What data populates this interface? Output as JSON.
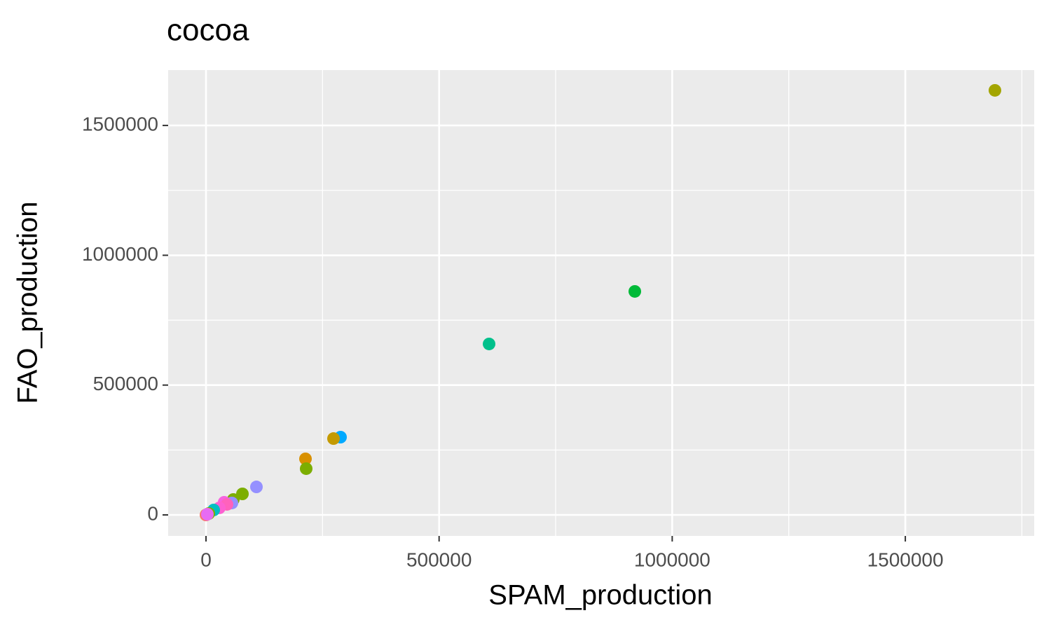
{
  "chart_data": {
    "type": "scatter",
    "title": "cocoa",
    "x_label": "SPAM_production",
    "y_label": "FAO_production",
    "x": [
      1692200,
      919800,
      607200,
      288550,
      273500,
      213400,
      214900,
      108200,
      78150,
      58600,
      55600,
      39000,
      45100,
      28600,
      16500,
      6000,
      0,
      3000
    ],
    "y": [
      1635200,
      860800,
      658400,
      299500,
      294100,
      215900,
      178100,
      107900,
      80950,
      59400,
      45900,
      48600,
      40500,
      27000,
      18900,
      5400,
      0,
      2700
    ],
    "colors": [
      "#a3a500",
      "#00ba38",
      "#00c08b",
      "#00a9ff",
      "#c49a00",
      "#d89000",
      "#7cae00",
      "#9590ff",
      "#7cae00",
      "#7cae00",
      "#9590ff",
      "#f763e0",
      "#ff62bc",
      "#fd61d1",
      "#00bfc4",
      "#7cae00",
      "#f8766d",
      "#e76bf3"
    ],
    "xlim": [
      -81150,
      1776400
    ],
    "ylim": [
      -80950,
      1713400
    ],
    "xticks": [
      0,
      500000,
      1000000,
      1500000
    ],
    "yticks": [
      0,
      500000,
      1000000,
      1500000
    ],
    "grid": true
  }
}
